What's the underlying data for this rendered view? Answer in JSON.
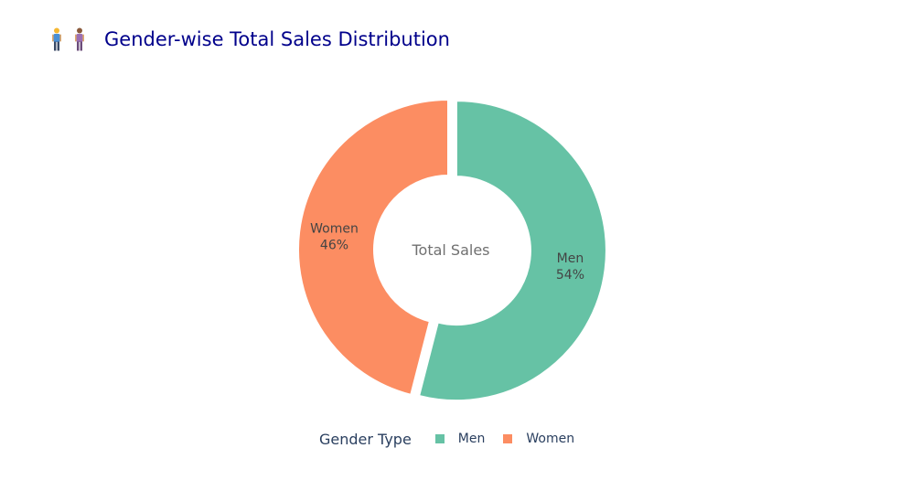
{
  "chart_data": {
    "type": "pie",
    "hole": true,
    "title": "🧍‍♂️🧍‍♀️ Gender-wise Total Sales Distribution",
    "title_text": "Gender-wise Total Sales Distribution",
    "center_annotation": "Total Sales",
    "legend_title": "Gender Type",
    "legend_position": "bottom",
    "slices": [
      {
        "label": "Men",
        "percent": 54,
        "percent_text": "54%",
        "color": "#66c2a5",
        "pulled": true
      },
      {
        "label": "Women",
        "percent": 46,
        "percent_text": "46%",
        "color": "#fc8d62",
        "pulled": false
      }
    ]
  },
  "colors": {
    "title": "#00008b",
    "text": "#444444",
    "legend_text": "#2a3f5f"
  },
  "icons": [
    "man-standing-icon",
    "woman-standing-icon"
  ]
}
